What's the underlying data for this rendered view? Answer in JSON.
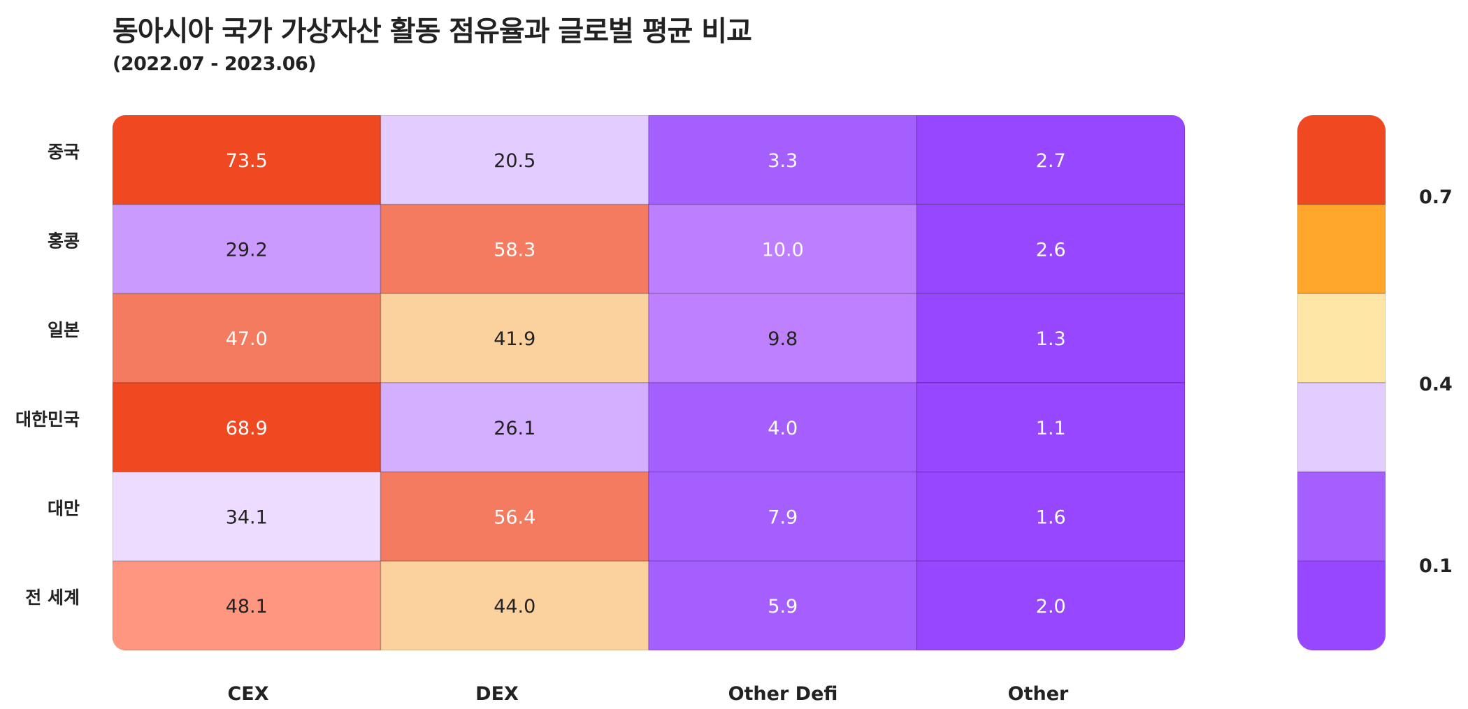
{
  "title": "동아시아 국가 가상자산 활동 점유율과 글로벌 평균 비교",
  "subtitle": "(2022.07 - 2023.06)",
  "chart_data": {
    "type": "heatmap",
    "rows": [
      "중국",
      "홍콩",
      "일본",
      "대한민국",
      "대만",
      "전 세계"
    ],
    "columns": [
      "CEX",
      "DEX",
      "Other Defi",
      "Other"
    ],
    "values": [
      [
        73.5,
        20.5,
        3.3,
        2.7
      ],
      [
        29.2,
        58.3,
        10.0,
        2.6
      ],
      [
        47.0,
        41.9,
        9.8,
        1.3
      ],
      [
        68.9,
        26.1,
        4.0,
        1.1
      ],
      [
        34.1,
        56.4,
        7.9,
        1.6
      ],
      [
        48.1,
        44.0,
        5.9,
        2.0
      ]
    ],
    "labels": [
      [
        "73.5",
        "20.5",
        "3.3",
        "2.7"
      ],
      [
        "29.2",
        "58.3",
        "10.0",
        "2.6"
      ],
      [
        "47.0",
        "41.9",
        "9.8",
        "1.3"
      ],
      [
        "68.9",
        "26.1",
        "4.0",
        "1.1"
      ],
      [
        "34.1",
        "56.4",
        "7.9",
        "1.6"
      ],
      [
        "48.1",
        "44.0",
        "5.9",
        "2.0"
      ]
    ],
    "cell_colors": [
      [
        "#F04922",
        "#E3CCFF",
        "#A65FFF",
        "#9747FF"
      ],
      [
        "#CB9AFF",
        "#F57B60",
        "#BD7FFF",
        "#9747FF"
      ],
      [
        "#F57B60",
        "#FBD19E",
        "#BE80FF",
        "#9747FF"
      ],
      [
        "#F04922",
        "#D5AFFF",
        "#A65FFF",
        "#9747FF"
      ],
      [
        "#EDDCFF",
        "#F57B60",
        "#A65FFF",
        "#9747FF"
      ],
      [
        "#FF9780",
        "#FBD19E",
        "#A65FFF",
        "#9747FF"
      ]
    ],
    "text_colors": [
      [
        "#ffffff",
        "#222222",
        "#ffffff",
        "#ffffff"
      ],
      [
        "#222222",
        "#ffffff",
        "#ffffff",
        "#ffffff"
      ],
      [
        "#ffffff",
        "#222222",
        "#222222",
        "#ffffff"
      ],
      [
        "#ffffff",
        "#222222",
        "#ffffff",
        "#ffffff"
      ],
      [
        "#222222",
        "#ffffff",
        "#ffffff",
        "#ffffff"
      ],
      [
        "#222222",
        "#222222",
        "#ffffff",
        "#ffffff"
      ]
    ],
    "colorbar": {
      "bins_top_to_bottom": [
        "#F04922",
        "#FFA62B",
        "#FDE6A6",
        "#E3CCFF",
        "#A65FFF",
        "#9747FF"
      ],
      "ticks": [
        "0.7",
        "0.4",
        "0.1"
      ],
      "placement": "right"
    }
  }
}
